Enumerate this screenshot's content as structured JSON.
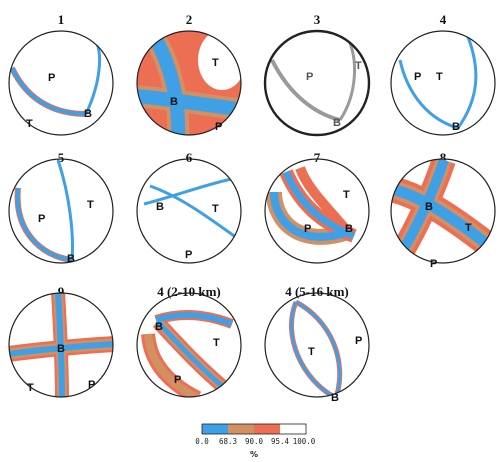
{
  "colors": {
    "blue": "#3fa0e6",
    "brown": "#d39063",
    "red": "#ec6e53",
    "white": "#ffffff",
    "gray": "#9a9a9a",
    "outline": "#222222"
  },
  "panels": [
    {
      "title": "1",
      "labels": [
        "P",
        "T",
        "B"
      ]
    },
    {
      "title": "2",
      "labels": [
        "T",
        "B",
        "P"
      ]
    },
    {
      "title": "3",
      "labels": [
        "P",
        "T",
        "B"
      ]
    },
    {
      "title": "4",
      "labels": [
        "P",
        "T",
        "B"
      ]
    },
    {
      "title": "5",
      "labels": [
        "P",
        "T",
        "B"
      ]
    },
    {
      "title": "6",
      "labels": [
        "B",
        "T",
        "P"
      ]
    },
    {
      "title": "7",
      "labels": [
        "T",
        "P",
        "B"
      ]
    },
    {
      "title": "8",
      "labels": [
        "B",
        "T",
        "P"
      ]
    },
    {
      "title": "9",
      "labels": [
        "B",
        "T",
        "P"
      ]
    },
    {
      "title": "4 (2-10 km)",
      "labels": [
        "B",
        "T",
        "P"
      ]
    },
    {
      "title": "4 (5-16 km)",
      "labels": [
        "T",
        "P",
        "B"
      ]
    }
  ],
  "colorbar": {
    "ticks": [
      "0.0",
      "68.3",
      "90.0",
      "95.4",
      "100.0"
    ],
    "unit": "%"
  }
}
